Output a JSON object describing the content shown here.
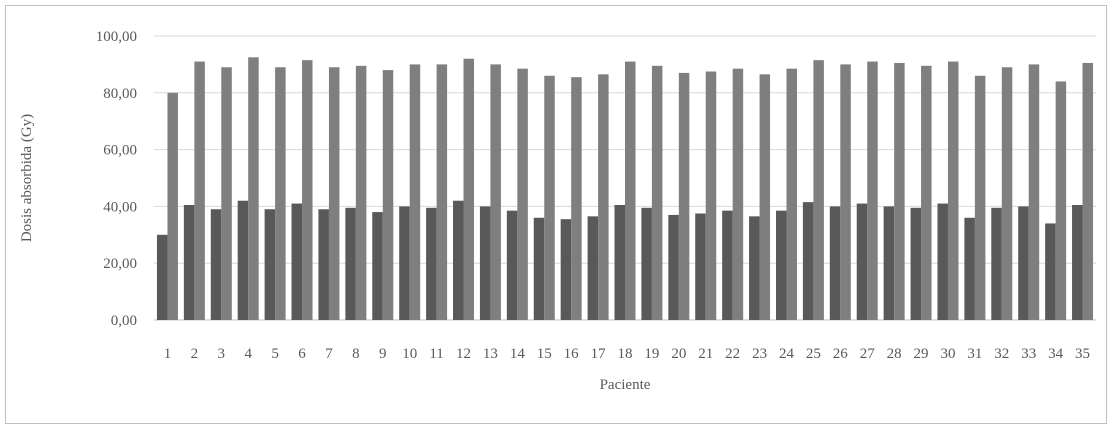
{
  "chart_data": {
    "type": "bar",
    "title": "",
    "xlabel": "Paciente",
    "ylabel": "Dosis absorbida (Gy)",
    "ylim": [
      0,
      100
    ],
    "y_ticks": [
      "0,00",
      "20,00",
      "40,00",
      "60,00",
      "80,00",
      "100,00"
    ],
    "categories": [
      "1",
      "2",
      "3",
      "4",
      "5",
      "6",
      "7",
      "8",
      "9",
      "10",
      "11",
      "12",
      "13",
      "14",
      "15",
      "16",
      "17",
      "18",
      "19",
      "20",
      "21",
      "22",
      "23",
      "24",
      "25",
      "26",
      "27",
      "28",
      "29",
      "30",
      "31",
      "32",
      "33",
      "34",
      "35"
    ],
    "series": [
      {
        "color": "#595959",
        "values": [
          30.0,
          40.5,
          39.0,
          42.0,
          39.0,
          41.0,
          39.0,
          39.5,
          38.0,
          40.0,
          39.5,
          42.0,
          40.0,
          38.5,
          36.0,
          35.5,
          36.5,
          40.5,
          39.5,
          37.0,
          37.5,
          38.5,
          36.5,
          38.5,
          41.5,
          40.0,
          41.0,
          40.0,
          39.5,
          41.0,
          36.0,
          39.5,
          40.0,
          34.0,
          40.5
        ]
      },
      {
        "color": "#7f7f7f",
        "values": [
          80.0,
          91.0,
          89.0,
          92.5,
          89.0,
          91.5,
          89.0,
          89.5,
          88.0,
          90.0,
          90.0,
          92.0,
          90.0,
          88.5,
          86.0,
          85.5,
          86.5,
          91.0,
          89.5,
          87.0,
          87.5,
          88.5,
          86.5,
          88.5,
          91.5,
          90.0,
          91.0,
          90.5,
          89.5,
          91.0,
          86.0,
          89.0,
          90.0,
          84.0,
          90.5
        ]
      }
    ],
    "grid": true,
    "legend": "none"
  }
}
